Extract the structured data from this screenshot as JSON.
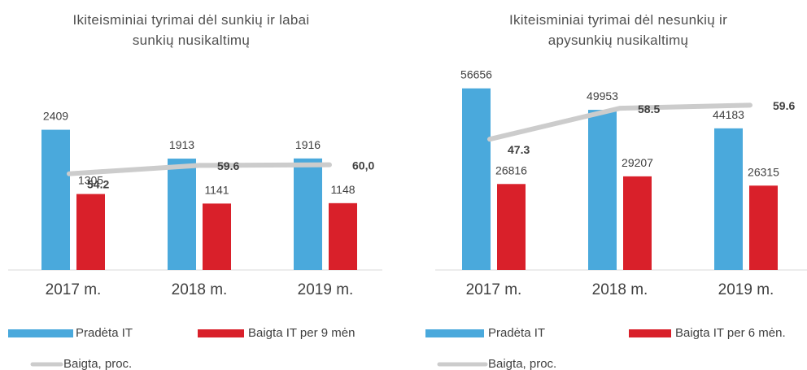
{
  "chart_data": [
    {
      "type": "bar",
      "title": "Ikiteisminiai tyrimai dėl sunkių ir labai sunkių nusikaltimų",
      "categories": [
        "2017 m.",
        "2018 m.",
        "2019 m."
      ],
      "series": [
        {
          "name": "Pradėta IT",
          "color": "#4aa9dc",
          "values": [
            2409,
            1913,
            1916
          ]
        },
        {
          "name": "Baigta IT per 9 mėn",
          "color": "#d9202a",
          "values": [
            1305,
            1141,
            1148
          ]
        },
        {
          "name": "Baigta, proc.",
          "color": "#cccccc",
          "type": "line",
          "axis": "y2",
          "values": [
            54.2,
            59.6,
            60.0
          ],
          "value_labels": [
            "54.2",
            "59.6",
            "60,0"
          ]
        }
      ],
      "ylim": [
        0,
        3800
      ],
      "y2lim": [
        -8,
        135
      ]
    },
    {
      "type": "bar",
      "title": "Ikiteisminiai tyrimai dėl nesunkių ir apysunkių nusikaltimų",
      "categories": [
        "2017 m.",
        "2018 m.",
        "2019 m."
      ],
      "series": [
        {
          "name": "Pradėta IT",
          "color": "#4aa9dc",
          "values": [
            56656,
            49953,
            44183
          ]
        },
        {
          "name": "Baigta IT per 6 mėn.",
          "color": "#d9202a",
          "values": [
            26816,
            29207,
            26315
          ]
        },
        {
          "name": "Baigta, proc.",
          "color": "#cccccc",
          "type": "line",
          "axis": "y2",
          "values": [
            47.3,
            58.5,
            59.6
          ]
        }
      ],
      "ylim": [
        0,
        69000
      ],
      "y2lim": [
        0,
        80
      ]
    }
  ]
}
